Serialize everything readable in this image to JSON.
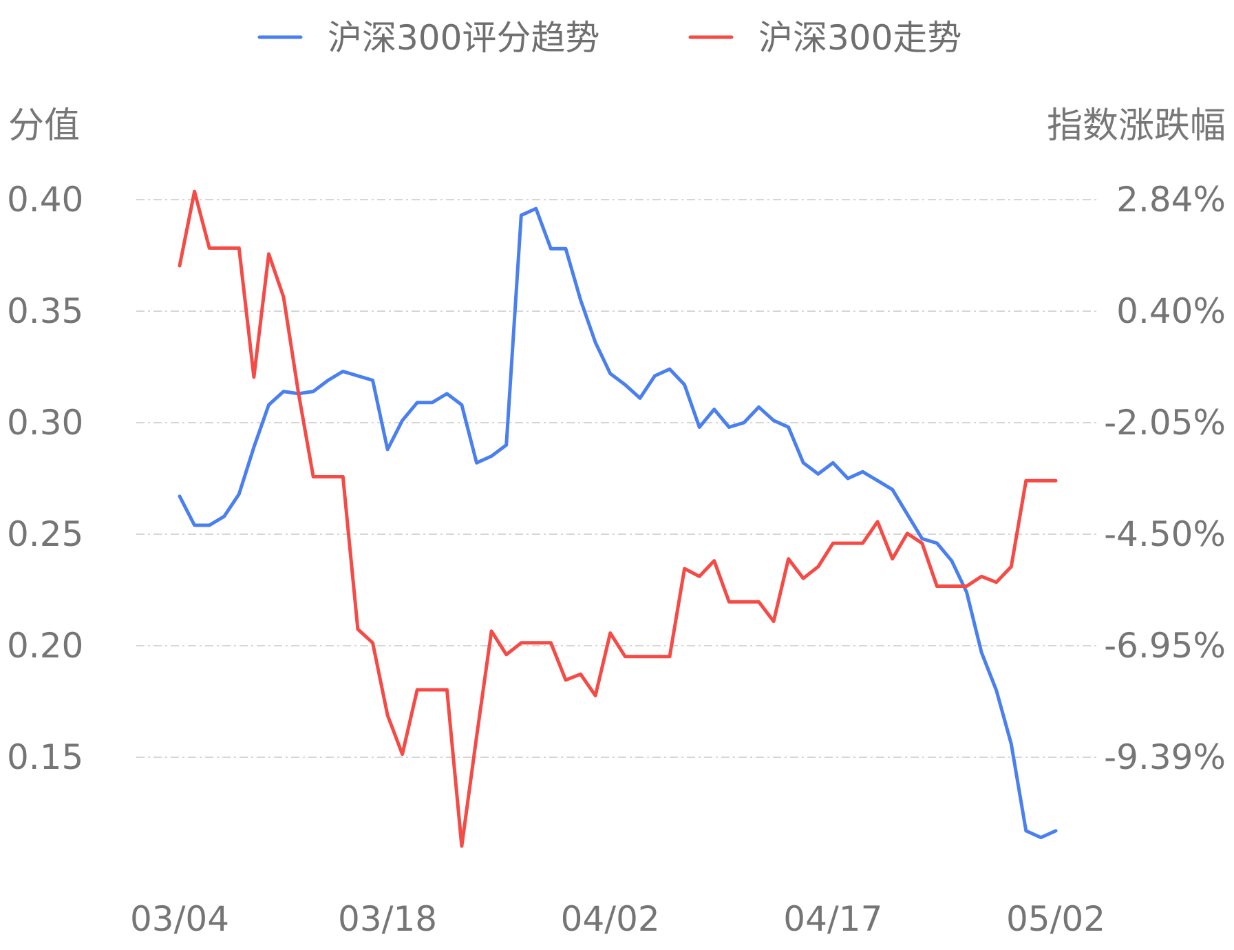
{
  "chart_data": {
    "type": "line",
    "legend": {
      "position": "top-center",
      "items": [
        {
          "label": "沪深300评分趋势",
          "color": "#4a7ff0"
        },
        {
          "label": "沪深300走势",
          "color": "#f54a45"
        }
      ]
    },
    "left_axis": {
      "title": "分值",
      "ticks": [
        "0.40",
        "0.35",
        "0.30",
        "0.25",
        "0.20",
        "0.15"
      ],
      "range": [
        0.1,
        0.4
      ]
    },
    "right_axis": {
      "title": "指数涨跌幅",
      "ticks": [
        "2.84%",
        "0.40%",
        "-2.05%",
        "-4.50%",
        "-6.95%",
        "-9.39%"
      ],
      "range": [
        -14.28,
        2.84
      ]
    },
    "x_ticks": [
      {
        "label": "03/04",
        "index": 0
      },
      {
        "label": "03/18",
        "index": 14
      },
      {
        "label": "04/02",
        "index": 29
      },
      {
        "label": "04/17",
        "index": 44
      },
      {
        "label": "05/02",
        "index": 59
      }
    ],
    "grid": true,
    "series": [
      {
        "name": "沪深300评分趋势",
        "axis": "left",
        "color": "#4a7ff0",
        "values": [
          0.267,
          0.254,
          0.254,
          0.258,
          0.268,
          0.289,
          0.308,
          0.314,
          0.313,
          0.314,
          0.319,
          0.323,
          0.321,
          0.319,
          0.288,
          0.301,
          0.309,
          0.309,
          0.313,
          0.308,
          0.282,
          0.285,
          0.29,
          0.393,
          0.396,
          0.378,
          0.378,
          0.355,
          0.336,
          0.322,
          0.317,
          0.311,
          0.321,
          0.324,
          0.317,
          0.298,
          0.306,
          0.298,
          0.3,
          0.307,
          0.301,
          0.298,
          0.282,
          0.277,
          0.282,
          0.275,
          0.278,
          0.274,
          0.27,
          0.259,
          0.248,
          0.246,
          0.238,
          0.224,
          0.197,
          0.18,
          0.156,
          0.117,
          0.114,
          0.117
        ]
      },
      {
        "name": "沪深300走势",
        "axis": "right",
        "color": "#f54a45",
        "values": [
          1.15,
          3.05,
          1.6,
          1.6,
          1.6,
          -1.7,
          1.45,
          0.35,
          -2.1,
          -4.25,
          -4.25,
          -4.25,
          -8.15,
          -8.5,
          -10.35,
          -11.35,
          -9.7,
          -9.7,
          -9.7,
          -13.7,
          -10.9,
          -8.2,
          -8.8,
          -8.5,
          -8.5,
          -8.5,
          -9.45,
          -9.3,
          -9.85,
          -8.25,
          -8.85,
          -8.85,
          -8.85,
          -8.85,
          -6.6,
          -6.8,
          -6.4,
          -7.45,
          -7.45,
          -7.45,
          -7.95,
          -6.35,
          -6.85,
          -6.55,
          -5.95,
          -5.95,
          -5.95,
          -5.4,
          -6.35,
          -5.7,
          -5.95,
          -7.05,
          -7.05,
          -7.05,
          -6.8,
          -6.95,
          -6.55,
          -4.35,
          -4.35,
          -4.35
        ]
      }
    ]
  }
}
